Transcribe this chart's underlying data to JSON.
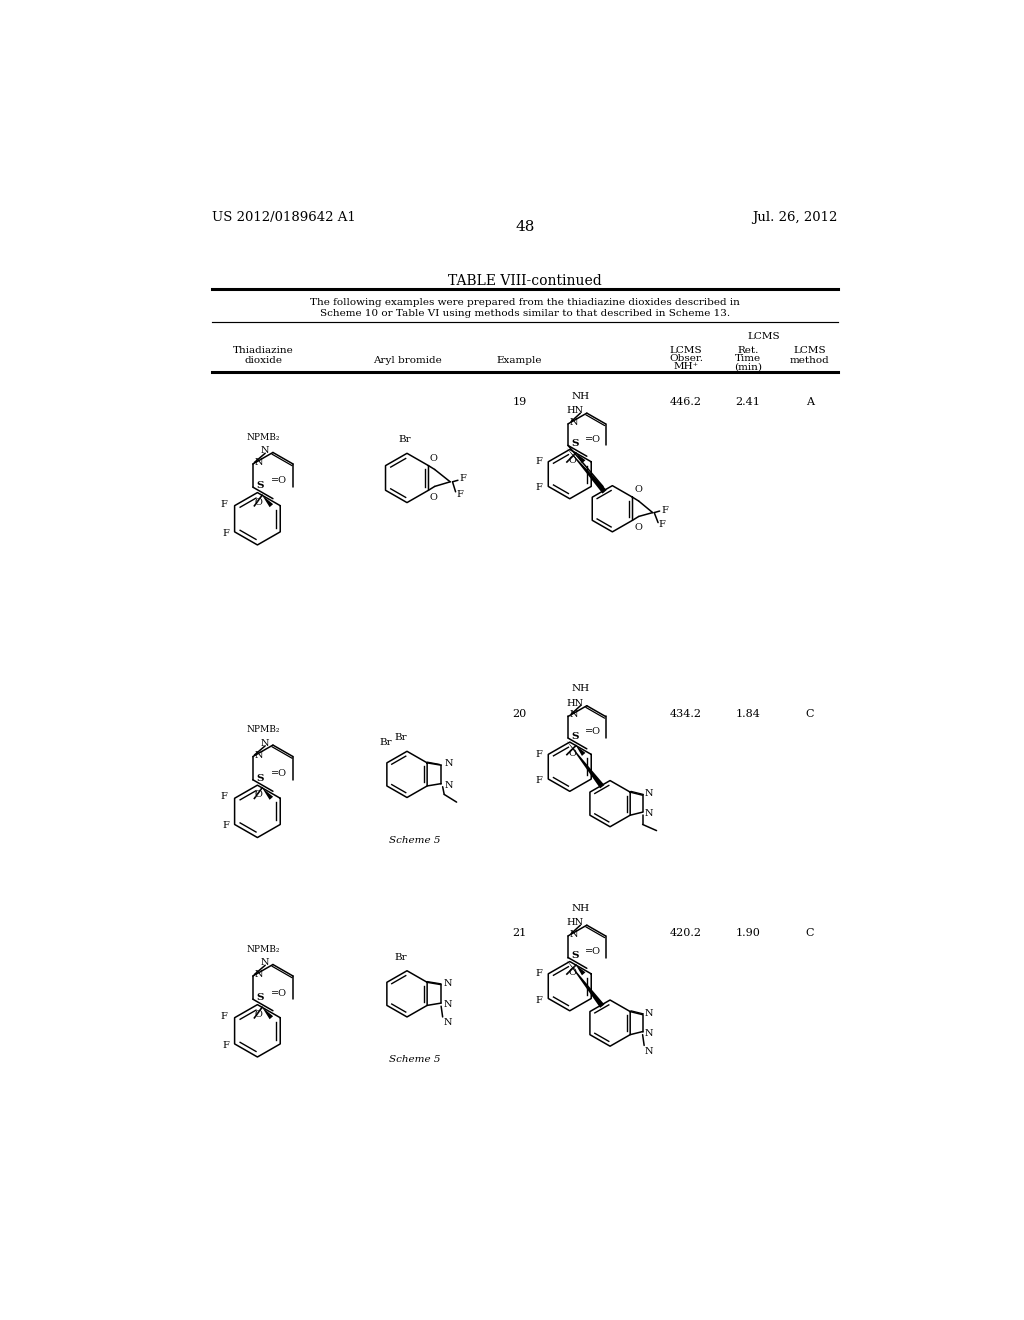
{
  "page_number": "48",
  "patent_number": "US 2012/0189642 A1",
  "patent_date": "Jul. 26, 2012",
  "table_title": "TABLE VIII-continued",
  "note_line1": "The following examples were prepared from the thiadiazine dioxides described in",
  "note_line2": "Scheme 10 or Table VI using methods similar to that described in Scheme 13.",
  "rows": [
    {
      "example": "19",
      "lcms_mh": "446.2",
      "lcms_ret": "2.41",
      "lcms_method": "A"
    },
    {
      "example": "20",
      "lcms_mh": "434.2",
      "lcms_ret": "1.84",
      "lcms_method": "C",
      "note": "Scheme 5"
    },
    {
      "example": "21",
      "lcms_mh": "420.2",
      "lcms_ret": "1.90",
      "lcms_method": "C",
      "note": "Scheme 5"
    }
  ],
  "row_tops": [
    295,
    700,
    985
  ],
  "struct_row_centers": [
    430,
    810,
    1095
  ],
  "col_x": {
    "thiadiazine": 175,
    "aryl": 355,
    "example": 505,
    "lcms_mh": 720,
    "lcms_ret": 800,
    "lcms_method": 880
  }
}
